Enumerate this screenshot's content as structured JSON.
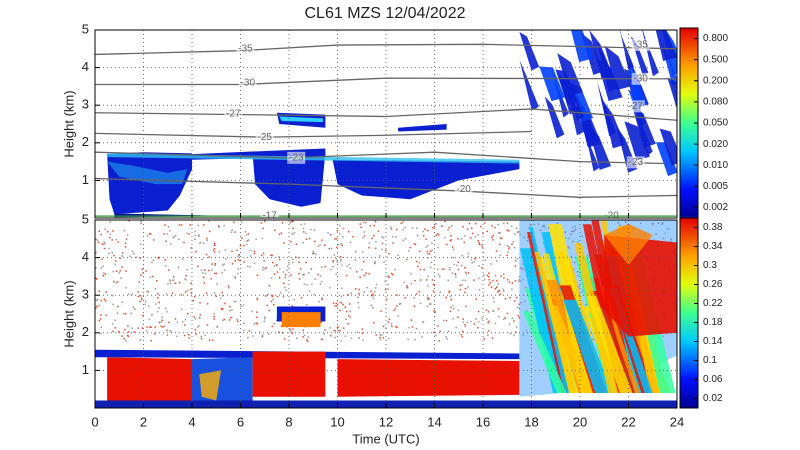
{
  "chart_data": [
    {
      "type": "heatmap",
      "title": "CL61 MZS 12/04/2022",
      "ylabel": "Height (km)",
      "xlim": [
        0,
        24
      ],
      "xticks": [
        0,
        2,
        4,
        6,
        8,
        10,
        12,
        14,
        16,
        18,
        20,
        22,
        24
      ],
      "ylim": [
        0,
        5
      ],
      "yticks": [
        1,
        2,
        3,
        4,
        5
      ],
      "grid": true,
      "colorbar": {
        "ticks": [
          {
            "value": 0.8,
            "label": "0.800"
          },
          {
            "value": 0.5,
            "label": "0.500"
          },
          {
            "value": 0.2,
            "label": "0.200"
          },
          {
            "value": 0.08,
            "label": "0.080"
          },
          {
            "value": 0.05,
            "label": "0.050"
          },
          {
            "value": 0.02,
            "label": "0.020"
          },
          {
            "value": 0.01,
            "label": "0.010"
          },
          {
            "value": 0.005,
            "label": "0.005"
          },
          {
            "value": 0.002,
            "label": "0.002"
          }
        ]
      },
      "contours": [
        -35,
        -30,
        -27,
        -25,
        -23,
        -20,
        -17
      ]
    },
    {
      "type": "heatmap",
      "ylabel": "Height (km)",
      "xlabel": "Time (UTC)",
      "xlim": [
        0,
        24
      ],
      "xticks": [
        0,
        2,
        4,
        6,
        8,
        10,
        12,
        14,
        16,
        18,
        20,
        22,
        24
      ],
      "ylim": [
        0,
        5
      ],
      "yticks": [
        1,
        2,
        3,
        4,
        5
      ],
      "grid": true,
      "colorbar": {
        "lim": [
          0,
          0.4
        ],
        "ticks": [
          0.02,
          0.06,
          0.1,
          0.14,
          0.18,
          0.22,
          0.26,
          0.3,
          0.34,
          0.38
        ]
      }
    }
  ]
}
